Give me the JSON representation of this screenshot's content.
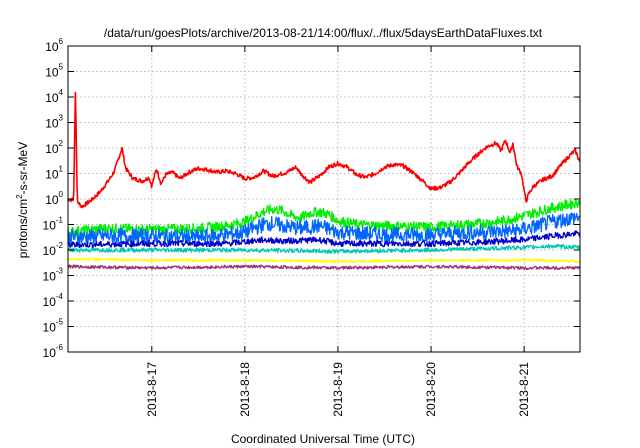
{
  "chart_data": {
    "type": "line",
    "title": "/data/run/goesPlots/archive/2013-08-21/14:00/flux/../flux/5daysEarthDataFluxes.txt",
    "xlabel": "Coordinated Universal Time (UTC)",
    "ylabel": "protons/cm2-s-sr-MeV",
    "ylabel_base": "protons/cm",
    "ylabel_sup": "2",
    "ylabel_rest": "-s-sr-MeV",
    "y_scale": "log",
    "ylim": [
      1e-06,
      1000000.0
    ],
    "y_ticks": [
      {
        "exp": -6,
        "base": "10",
        "sup": "-6"
      },
      {
        "exp": -5,
        "base": "10",
        "sup": "-5"
      },
      {
        "exp": -4,
        "base": "10",
        "sup": "-4"
      },
      {
        "exp": -3,
        "base": "10",
        "sup": "-3"
      },
      {
        "exp": -2,
        "base": "10",
        "sup": "-2"
      },
      {
        "exp": -1,
        "base": "10",
        "sup": "-1"
      },
      {
        "exp": 0,
        "base": "10",
        "sup": "0"
      },
      {
        "exp": 1,
        "base": "10",
        "sup": "1"
      },
      {
        "exp": 2,
        "base": "10",
        "sup": "2"
      },
      {
        "exp": 3,
        "base": "10",
        "sup": "3"
      },
      {
        "exp": 4,
        "base": "10",
        "sup": "4"
      },
      {
        "exp": 5,
        "base": "10",
        "sup": "5"
      },
      {
        "exp": 6,
        "base": "10",
        "sup": "6"
      }
    ],
    "x_unit": "days",
    "xlim": [
      16.1,
      21.6
    ],
    "x_ticks": [
      {
        "value": 17,
        "label": "2013-8-17"
      },
      {
        "value": 18,
        "label": "2013-8-18"
      },
      {
        "value": 19,
        "label": "2013-8-19"
      },
      {
        "value": 20,
        "label": "2013-8-20"
      },
      {
        "value": 21,
        "label": "2013-8-21"
      }
    ],
    "grid": true,
    "legend": "none",
    "series": [
      {
        "color": "#ff0000",
        "noise": 0.08,
        "points": [
          [
            16.1,
            0.0
          ],
          [
            16.16,
            -0.05
          ],
          [
            16.18,
            4.3
          ],
          [
            16.2,
            -0.1
          ],
          [
            16.25,
            -0.3
          ],
          [
            16.35,
            -0.05
          ],
          [
            16.45,
            0.3
          ],
          [
            16.55,
            0.8
          ],
          [
            16.6,
            1.1
          ],
          [
            16.68,
            2.0
          ],
          [
            16.72,
            1.2
          ],
          [
            16.8,
            0.8
          ],
          [
            16.9,
            0.7
          ],
          [
            16.97,
            0.85
          ],
          [
            17.0,
            0.5
          ],
          [
            17.05,
            1.2
          ],
          [
            17.1,
            0.6
          ],
          [
            17.15,
            0.95
          ],
          [
            17.22,
            1.05
          ],
          [
            17.3,
            0.8
          ],
          [
            17.4,
            1.05
          ],
          [
            17.5,
            1.2
          ],
          [
            17.6,
            1.15
          ],
          [
            17.7,
            1.05
          ],
          [
            17.8,
            1.1
          ],
          [
            17.9,
            1.0
          ],
          [
            18.0,
            0.8
          ],
          [
            18.1,
            0.85
          ],
          [
            18.2,
            1.1
          ],
          [
            18.3,
            0.9
          ],
          [
            18.45,
            1.05
          ],
          [
            18.55,
            1.25
          ],
          [
            18.6,
            1.0
          ],
          [
            18.7,
            0.65
          ],
          [
            18.8,
            0.9
          ],
          [
            18.9,
            1.25
          ],
          [
            19.0,
            1.4
          ],
          [
            19.1,
            1.25
          ],
          [
            19.2,
            0.95
          ],
          [
            19.3,
            0.85
          ],
          [
            19.4,
            1.0
          ],
          [
            19.5,
            1.25
          ],
          [
            19.6,
            1.35
          ],
          [
            19.7,
            1.3
          ],
          [
            19.8,
            1.05
          ],
          [
            19.9,
            0.75
          ],
          [
            20.0,
            0.4
          ],
          [
            20.1,
            0.45
          ],
          [
            20.2,
            0.65
          ],
          [
            20.3,
            1.0
          ],
          [
            20.4,
            1.4
          ],
          [
            20.5,
            1.75
          ],
          [
            20.6,
            2.05
          ],
          [
            20.7,
            2.2
          ],
          [
            20.75,
            1.9
          ],
          [
            20.8,
            2.3
          ],
          [
            20.85,
            1.8
          ],
          [
            20.88,
            2.2
          ],
          [
            20.92,
            1.3
          ],
          [
            20.97,
            1.0
          ],
          [
            21.02,
            -0.1
          ],
          [
            21.05,
            0.2
          ],
          [
            21.1,
            0.5
          ],
          [
            21.2,
            0.75
          ],
          [
            21.3,
            0.9
          ],
          [
            21.4,
            1.35
          ],
          [
            21.5,
            1.75
          ],
          [
            21.55,
            1.9
          ],
          [
            21.6,
            1.45
          ]
        ]
      },
      {
        "color": "#00ee00",
        "noise": 0.2,
        "points": [
          [
            16.1,
            -1.3
          ],
          [
            16.5,
            -1.15
          ],
          [
            17.0,
            -1.2
          ],
          [
            17.5,
            -1.15
          ],
          [
            17.8,
            -1.05
          ],
          [
            18.0,
            -0.9
          ],
          [
            18.1,
            -0.7
          ],
          [
            18.2,
            -0.5
          ],
          [
            18.3,
            -0.4
          ],
          [
            18.4,
            -0.45
          ],
          [
            18.5,
            -0.65
          ],
          [
            18.6,
            -0.75
          ],
          [
            18.7,
            -0.55
          ],
          [
            18.8,
            -0.5
          ],
          [
            18.9,
            -0.6
          ],
          [
            19.0,
            -0.85
          ],
          [
            19.2,
            -1.0
          ],
          [
            19.5,
            -1.05
          ],
          [
            20.0,
            -1.1
          ],
          [
            20.4,
            -1.0
          ],
          [
            20.7,
            -0.9
          ],
          [
            20.9,
            -0.75
          ],
          [
            21.1,
            -0.55
          ],
          [
            21.3,
            -0.35
          ],
          [
            21.5,
            -0.2
          ],
          [
            21.6,
            -0.1
          ]
        ]
      },
      {
        "color": "#0066ff",
        "noise": 0.3,
        "points": [
          [
            16.1,
            -1.5
          ],
          [
            16.5,
            -1.45
          ],
          [
            17.0,
            -1.45
          ],
          [
            17.5,
            -1.5
          ],
          [
            17.8,
            -1.4
          ],
          [
            18.0,
            -1.3
          ],
          [
            18.2,
            -1.0
          ],
          [
            18.3,
            -0.95
          ],
          [
            18.4,
            -1.05
          ],
          [
            18.6,
            -1.15
          ],
          [
            18.8,
            -1.05
          ],
          [
            19.0,
            -1.3
          ],
          [
            19.5,
            -1.4
          ],
          [
            20.0,
            -1.4
          ],
          [
            20.5,
            -1.3
          ],
          [
            20.9,
            -1.25
          ],
          [
            21.1,
            -1.1
          ],
          [
            21.3,
            -0.9
          ],
          [
            21.5,
            -0.75
          ],
          [
            21.6,
            -0.7
          ]
        ]
      },
      {
        "color": "#0000cc",
        "noise": 0.12,
        "points": [
          [
            16.1,
            -1.8
          ],
          [
            17.0,
            -1.75
          ],
          [
            17.8,
            -1.75
          ],
          [
            18.2,
            -1.6
          ],
          [
            18.4,
            -1.65
          ],
          [
            18.8,
            -1.6
          ],
          [
            19.0,
            -1.75
          ],
          [
            19.5,
            -1.75
          ],
          [
            20.0,
            -1.75
          ],
          [
            20.5,
            -1.7
          ],
          [
            21.0,
            -1.6
          ],
          [
            21.3,
            -1.45
          ],
          [
            21.6,
            -1.35
          ]
        ]
      },
      {
        "color": "#00c8b4",
        "noise": 0.08,
        "points": [
          [
            16.1,
            -2.0
          ],
          [
            17.0,
            -2.0
          ],
          [
            18.0,
            -2.0
          ],
          [
            19.0,
            -2.05
          ],
          [
            20.0,
            -2.0
          ],
          [
            20.5,
            -1.95
          ],
          [
            21.0,
            -1.9
          ],
          [
            21.3,
            -1.85
          ],
          [
            21.6,
            -1.9
          ]
        ]
      },
      {
        "color": "#ffff00",
        "noise": 0.05,
        "points": [
          [
            16.1,
            -2.35
          ],
          [
            17.0,
            -2.4
          ],
          [
            18.0,
            -2.4
          ],
          [
            19.0,
            -2.45
          ],
          [
            20.0,
            -2.4
          ],
          [
            21.0,
            -2.4
          ],
          [
            21.6,
            -2.45
          ]
        ]
      },
      {
        "color": "#993377",
        "noise": 0.06,
        "points": [
          [
            16.1,
            -2.65
          ],
          [
            17.0,
            -2.7
          ],
          [
            18.0,
            -2.65
          ],
          [
            19.0,
            -2.7
          ],
          [
            20.0,
            -2.65
          ],
          [
            21.0,
            -2.7
          ],
          [
            21.6,
            -2.7
          ]
        ]
      }
    ]
  }
}
